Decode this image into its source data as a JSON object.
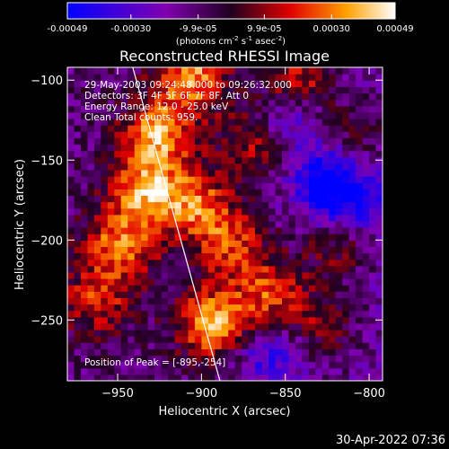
{
  "window": {
    "timestamp": "30-Apr-2022 07:36"
  },
  "colorbar": {
    "tick_labels": [
      "-0.00049",
      "-0.00030",
      "-9.9e-05",
      "9.9e-05",
      "0.00030",
      "0.00049"
    ],
    "tick_values": [
      -0.00049,
      -0.0003,
      -9.9e-05,
      9.9e-05,
      0.0003,
      0.00049
    ],
    "range": [
      -0.00049,
      0.00049
    ],
    "unit_label_parts": [
      "(photons cm",
      "-2",
      " s",
      "-1",
      " asec",
      "-2",
      ")"
    ],
    "colors": {
      "low": "#0000ff",
      "mid_low": "#8000b0",
      "mid": "#200020",
      "mid_high": "#e00000",
      "high_mid": "#ffa000",
      "high": "#ffffff"
    }
  },
  "annotations": {
    "time_range": "29-May-2003 09:24:48.000 to 09:26:32.000",
    "detectors": "Detectors: 3F 4F 5F 6F 7F 8F, Att 0",
    "energy_range": "Energy Range: 12.0 - 25.0 keV",
    "method": "Clean    Total counts: 959.",
    "peak": "Position of Peak = [-895,-254]"
  },
  "chart_data": {
    "type": "heatmap",
    "title": "Reconstructed RHESSI Image",
    "xlabel": "Heliocentric X (arcsec)",
    "ylabel": "Heliocentric Y (arcsec)",
    "xlim": [
      -980,
      -792
    ],
    "ylim": [
      -288,
      -92
    ],
    "x_ticks": [
      -950,
      -900,
      -850,
      -800
    ],
    "y_ticks": [
      -100,
      -150,
      -200,
      -250
    ],
    "x_tick_labels": [
      "−950",
      "−900",
      "−850",
      "−800"
    ],
    "y_tick_labels": [
      "−100",
      "−150",
      "−200",
      "−250"
    ],
    "limb_line": {
      "x": [
        -941,
        -889
      ],
      "y": [
        -92,
        -288
      ]
    },
    "peak_position": [
      -895,
      -254
    ],
    "hot_spots": [
      {
        "x": -908,
        "y": -100,
        "value": 0.00042
      },
      {
        "x": -935,
        "y": -170,
        "value": 0.00046
      },
      {
        "x": -950,
        "y": -205,
        "value": 0.0004
      },
      {
        "x": -928,
        "y": -135,
        "value": 0.00044
      },
      {
        "x": -905,
        "y": -180,
        "value": 0.00036
      },
      {
        "x": -885,
        "y": -205,
        "value": 0.0003
      },
      {
        "x": -895,
        "y": -254,
        "value": 0.00049
      },
      {
        "x": -860,
        "y": -235,
        "value": 0.00032
      },
      {
        "x": -845,
        "y": -105,
        "value": 0.00035
      },
      {
        "x": -820,
        "y": -205,
        "value": 0.00022
      },
      {
        "x": -965,
        "y": -240,
        "value": 0.00028
      },
      {
        "x": -810,
        "y": -135,
        "value": 0.00018
      },
      {
        "x": -870,
        "y": -140,
        "value": 0.00026
      },
      {
        "x": -830,
        "y": -255,
        "value": 0.0002
      }
    ],
    "cold_spots": [
      {
        "x": -850,
        "y": -125,
        "value": -0.0003
      },
      {
        "x": -828,
        "y": -165,
        "value": -0.0004
      },
      {
        "x": -862,
        "y": -275,
        "value": -0.00028
      },
      {
        "x": -812,
        "y": -180,
        "value": -0.00024
      }
    ]
  }
}
